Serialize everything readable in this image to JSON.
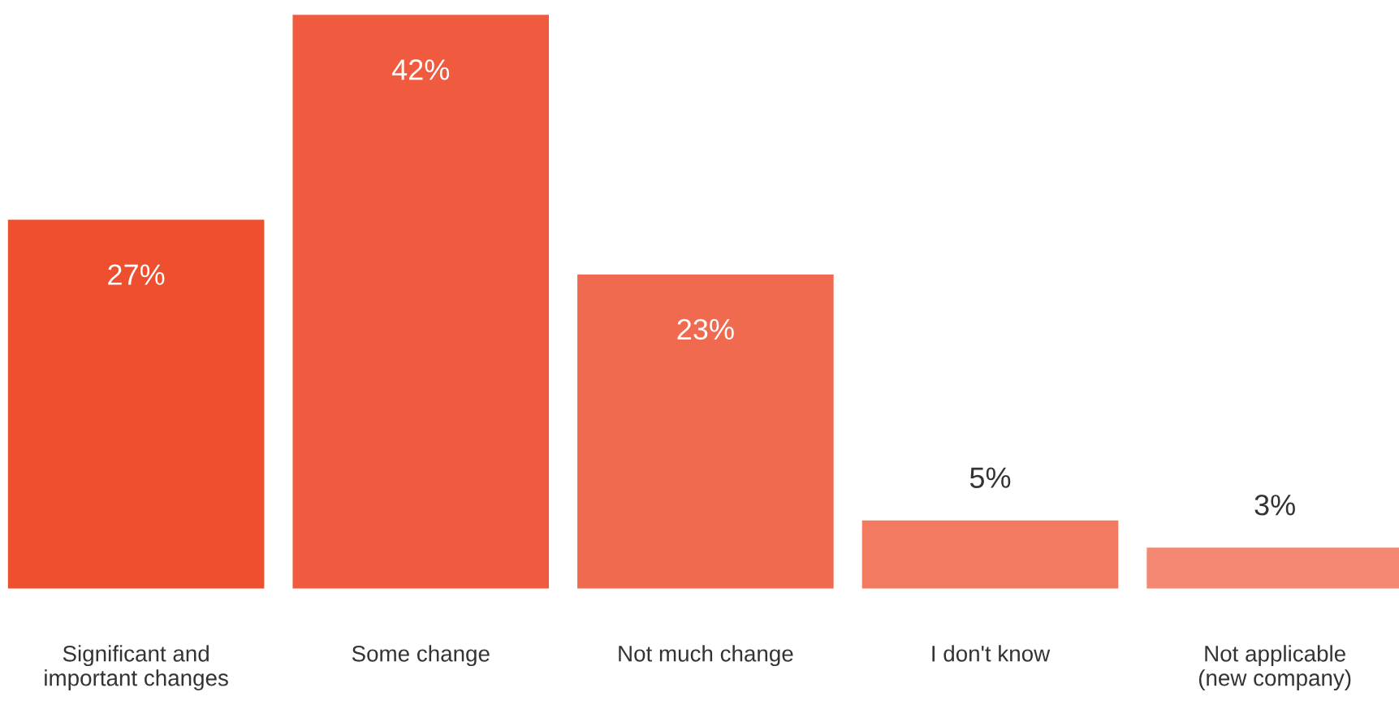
{
  "chart_data": {
    "type": "bar",
    "categories": [
      "Significant and\nimportant changes",
      "Some change",
      "Not much change",
      "I don't know",
      "Not applicable\n(new company)"
    ],
    "values": [
      27,
      42,
      23,
      5,
      3
    ],
    "colors": [
      "#ee4f2e",
      "#f05b40",
      "#f06a50",
      "#f27a61",
      "#f48872"
    ],
    "value_labels": [
      "27%",
      "42%",
      "23%",
      "5%",
      "3%"
    ],
    "grid": false,
    "legend": false
  }
}
